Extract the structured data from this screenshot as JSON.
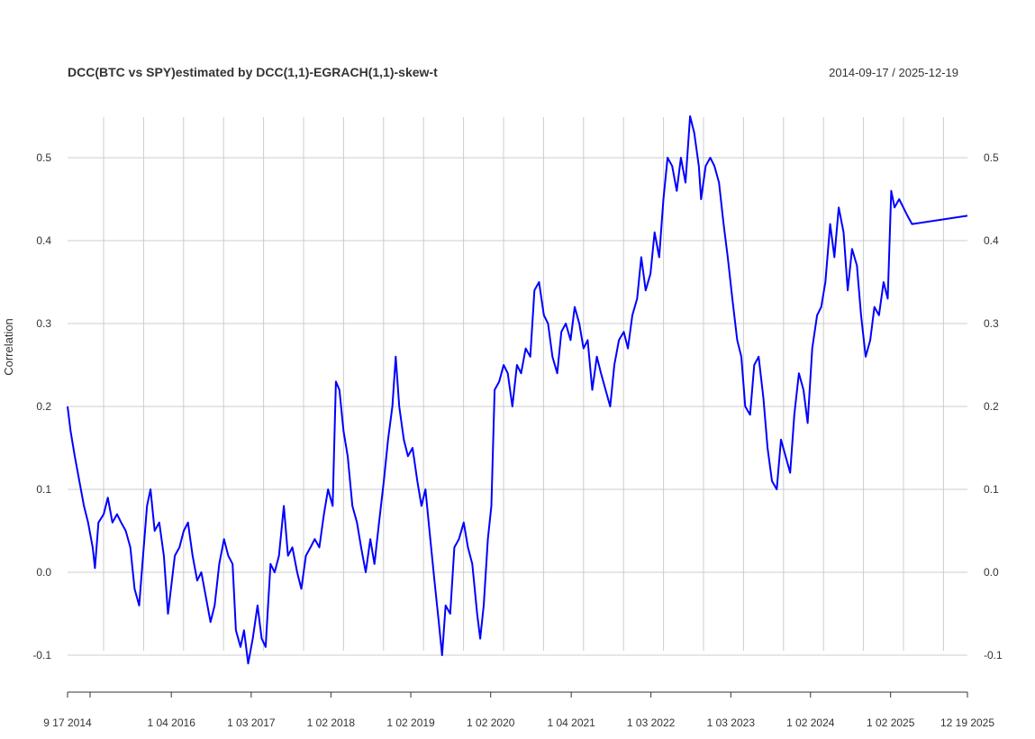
{
  "chart_data": {
    "type": "line",
    "title": "DCC(BTC vs SPY)estimated by DCC(1,1)-EGRACH(1,1)-skew-t",
    "date_range": "2014-09-17 / 2025-12-19",
    "ylabel": "Correlation",
    "ylim": [
      -0.15,
      0.55
    ],
    "grid": true,
    "y_ticks": [
      "-0.1",
      "0.0",
      "0.1",
      "0.2",
      "0.3",
      "0.4",
      "0.5"
    ],
    "x_tick_labels": [
      {
        "date": "2014-09-17",
        "label": "9 17 2014"
      },
      {
        "date": "2016-01-04",
        "label": "1 04 2016"
      },
      {
        "date": "2017-01-03",
        "label": "1 03 2017"
      },
      {
        "date": "2018-01-02",
        "label": "1 02 2018"
      },
      {
        "date": "2019-01-02",
        "label": "1 02 2019"
      },
      {
        "date": "2020-01-02",
        "label": "1 02 2020"
      },
      {
        "date": "2021-01-04",
        "label": "1 04 2021"
      },
      {
        "date": "2022-01-03",
        "label": "1 03 2022"
      },
      {
        "date": "2023-01-03",
        "label": "1 03 2023"
      },
      {
        "date": "2024-01-02",
        "label": "1 02 2024"
      },
      {
        "date": "2025-01-02",
        "label": "1 02 2025"
      },
      {
        "date": "2025-12-19",
        "label": "12 19 2025"
      }
    ],
    "series": [
      {
        "color": "#0000ff",
        "points": [
          [
            "2014-09-17",
            0.2
          ],
          [
            "2014-10-01",
            0.17
          ],
          [
            "2014-10-20",
            0.14
          ],
          [
            "2014-11-10",
            0.11
          ],
          [
            "2014-12-01",
            0.08
          ],
          [
            "2014-12-20",
            0.06
          ],
          [
            "2015-01-10",
            0.03
          ],
          [
            "2015-01-20",
            0.005
          ],
          [
            "2015-02-05",
            0.06
          ],
          [
            "2015-03-01",
            0.07
          ],
          [
            "2015-03-20",
            0.09
          ],
          [
            "2015-04-10",
            0.06
          ],
          [
            "2015-05-01",
            0.07
          ],
          [
            "2015-05-20",
            0.06
          ],
          [
            "2015-06-10",
            0.05
          ],
          [
            "2015-07-01",
            0.03
          ],
          [
            "2015-07-20",
            -0.02
          ],
          [
            "2015-08-10",
            -0.04
          ],
          [
            "2015-08-25",
            0.01
          ],
          [
            "2015-09-15",
            0.08
          ],
          [
            "2015-10-01",
            0.1
          ],
          [
            "2015-10-20",
            0.05
          ],
          [
            "2015-11-10",
            0.06
          ],
          [
            "2015-12-01",
            0.02
          ],
          [
            "2015-12-20",
            -0.05
          ],
          [
            "2016-01-20",
            0.02
          ],
          [
            "2016-02-10",
            0.03
          ],
          [
            "2016-03-01",
            0.05
          ],
          [
            "2016-03-20",
            0.06
          ],
          [
            "2016-04-10",
            0.02
          ],
          [
            "2016-05-01",
            -0.01
          ],
          [
            "2016-05-20",
            0.0
          ],
          [
            "2016-06-10",
            -0.03
          ],
          [
            "2016-07-01",
            -0.06
          ],
          [
            "2016-07-20",
            -0.04
          ],
          [
            "2016-08-10",
            0.01
          ],
          [
            "2016-09-01",
            0.04
          ],
          [
            "2016-09-20",
            0.02
          ],
          [
            "2016-10-10",
            0.01
          ],
          [
            "2016-10-25",
            -0.07
          ],
          [
            "2016-11-15",
            -0.09
          ],
          [
            "2016-12-01",
            -0.07
          ],
          [
            "2016-12-20",
            -0.11
          ],
          [
            "2017-01-10",
            -0.08
          ],
          [
            "2017-02-01",
            -0.04
          ],
          [
            "2017-02-20",
            -0.08
          ],
          [
            "2017-03-10",
            -0.09
          ],
          [
            "2017-04-01",
            0.01
          ],
          [
            "2017-04-20",
            0.0
          ],
          [
            "2017-05-10",
            0.02
          ],
          [
            "2017-06-01",
            0.08
          ],
          [
            "2017-06-20",
            0.02
          ],
          [
            "2017-07-10",
            0.03
          ],
          [
            "2017-08-01",
            0.0
          ],
          [
            "2017-08-20",
            -0.02
          ],
          [
            "2017-09-10",
            0.02
          ],
          [
            "2017-10-01",
            0.03
          ],
          [
            "2017-10-20",
            0.04
          ],
          [
            "2017-11-10",
            0.03
          ],
          [
            "2017-12-01",
            0.07
          ],
          [
            "2017-12-20",
            0.1
          ],
          [
            "2018-01-10",
            0.08
          ],
          [
            "2018-01-25",
            0.23
          ],
          [
            "2018-02-10",
            0.22
          ],
          [
            "2018-03-01",
            0.17
          ],
          [
            "2018-03-20",
            0.14
          ],
          [
            "2018-04-10",
            0.08
          ],
          [
            "2018-05-01",
            0.06
          ],
          [
            "2018-05-20",
            0.03
          ],
          [
            "2018-06-10",
            0.0
          ],
          [
            "2018-07-01",
            0.04
          ],
          [
            "2018-07-20",
            0.01
          ],
          [
            "2018-08-10",
            0.06
          ],
          [
            "2018-09-01",
            0.11
          ],
          [
            "2018-09-20",
            0.16
          ],
          [
            "2018-10-10",
            0.2
          ],
          [
            "2018-10-25",
            0.26
          ],
          [
            "2018-11-10",
            0.2
          ],
          [
            "2018-12-01",
            0.16
          ],
          [
            "2018-12-20",
            0.14
          ],
          [
            "2019-01-10",
            0.15
          ],
          [
            "2019-02-01",
            0.11
          ],
          [
            "2019-02-20",
            0.08
          ],
          [
            "2019-03-10",
            0.1
          ],
          [
            "2019-04-01",
            0.04
          ],
          [
            "2019-04-20",
            -0.01
          ],
          [
            "2019-05-10",
            -0.06
          ],
          [
            "2019-05-25",
            -0.1
          ],
          [
            "2019-06-10",
            -0.04
          ],
          [
            "2019-07-01",
            -0.05
          ],
          [
            "2019-07-20",
            0.03
          ],
          [
            "2019-08-10",
            0.04
          ],
          [
            "2019-09-01",
            0.06
          ],
          [
            "2019-09-20",
            0.03
          ],
          [
            "2019-10-10",
            0.01
          ],
          [
            "2019-11-01",
            -0.05
          ],
          [
            "2019-11-15",
            -0.08
          ],
          [
            "2019-12-01",
            -0.04
          ],
          [
            "2019-12-20",
            0.04
          ],
          [
            "2020-01-05",
            0.08
          ],
          [
            "2020-01-20",
            0.22
          ],
          [
            "2020-02-10",
            0.23
          ],
          [
            "2020-03-01",
            0.25
          ],
          [
            "2020-03-20",
            0.24
          ],
          [
            "2020-04-10",
            0.2
          ],
          [
            "2020-05-01",
            0.25
          ],
          [
            "2020-05-20",
            0.24
          ],
          [
            "2020-06-10",
            0.27
          ],
          [
            "2020-07-01",
            0.26
          ],
          [
            "2020-07-20",
            0.34
          ],
          [
            "2020-08-10",
            0.35
          ],
          [
            "2020-09-01",
            0.31
          ],
          [
            "2020-09-20",
            0.3
          ],
          [
            "2020-10-10",
            0.26
          ],
          [
            "2020-11-01",
            0.24
          ],
          [
            "2020-11-20",
            0.29
          ],
          [
            "2020-12-10",
            0.3
          ],
          [
            "2021-01-01",
            0.28
          ],
          [
            "2021-01-20",
            0.32
          ],
          [
            "2021-02-10",
            0.3
          ],
          [
            "2021-03-01",
            0.27
          ],
          [
            "2021-03-20",
            0.28
          ],
          [
            "2021-04-10",
            0.22
          ],
          [
            "2021-05-01",
            0.26
          ],
          [
            "2021-05-20",
            0.24
          ],
          [
            "2021-06-10",
            0.22
          ],
          [
            "2021-07-01",
            0.2
          ],
          [
            "2021-07-20",
            0.25
          ],
          [
            "2021-08-10",
            0.28
          ],
          [
            "2021-09-01",
            0.29
          ],
          [
            "2021-09-20",
            0.27
          ],
          [
            "2021-10-10",
            0.31
          ],
          [
            "2021-11-01",
            0.33
          ],
          [
            "2021-11-20",
            0.38
          ],
          [
            "2021-12-10",
            0.34
          ],
          [
            "2022-01-01",
            0.36
          ],
          [
            "2022-01-20",
            0.41
          ],
          [
            "2022-02-10",
            0.38
          ],
          [
            "2022-03-01",
            0.45
          ],
          [
            "2022-03-20",
            0.5
          ],
          [
            "2022-04-10",
            0.49
          ],
          [
            "2022-05-01",
            0.46
          ],
          [
            "2022-05-20",
            0.5
          ],
          [
            "2022-06-10",
            0.47
          ],
          [
            "2022-07-01",
            0.55
          ],
          [
            "2022-07-20",
            0.53
          ],
          [
            "2022-08-10",
            0.49
          ],
          [
            "2022-08-20",
            0.45
          ],
          [
            "2022-09-10",
            0.49
          ],
          [
            "2022-10-01",
            0.5
          ],
          [
            "2022-10-20",
            0.49
          ],
          [
            "2022-11-10",
            0.47
          ],
          [
            "2022-12-01",
            0.42
          ],
          [
            "2022-12-20",
            0.38
          ],
          [
            "2023-01-10",
            0.33
          ],
          [
            "2023-02-01",
            0.28
          ],
          [
            "2023-02-20",
            0.26
          ],
          [
            "2023-03-10",
            0.2
          ],
          [
            "2023-04-01",
            0.19
          ],
          [
            "2023-04-20",
            0.25
          ],
          [
            "2023-05-10",
            0.26
          ],
          [
            "2023-06-01",
            0.21
          ],
          [
            "2023-06-20",
            0.15
          ],
          [
            "2023-07-10",
            0.11
          ],
          [
            "2023-08-01",
            0.1
          ],
          [
            "2023-08-20",
            0.16
          ],
          [
            "2023-09-10",
            0.14
          ],
          [
            "2023-10-01",
            0.12
          ],
          [
            "2023-10-20",
            0.19
          ],
          [
            "2023-11-10",
            0.24
          ],
          [
            "2023-12-01",
            0.22
          ],
          [
            "2023-12-20",
            0.18
          ],
          [
            "2024-01-10",
            0.27
          ],
          [
            "2024-02-01",
            0.31
          ],
          [
            "2024-02-20",
            0.32
          ],
          [
            "2024-03-10",
            0.35
          ],
          [
            "2024-04-01",
            0.42
          ],
          [
            "2024-04-20",
            0.38
          ],
          [
            "2024-05-10",
            0.44
          ],
          [
            "2024-06-01",
            0.41
          ],
          [
            "2024-06-20",
            0.34
          ],
          [
            "2024-07-10",
            0.39
          ],
          [
            "2024-08-01",
            0.37
          ],
          [
            "2024-08-20",
            0.31
          ],
          [
            "2024-09-10",
            0.26
          ],
          [
            "2024-10-01",
            0.28
          ],
          [
            "2024-10-20",
            0.32
          ],
          [
            "2024-11-10",
            0.31
          ],
          [
            "2024-12-01",
            0.35
          ],
          [
            "2024-12-20",
            0.33
          ],
          [
            "2025-01-05",
            0.46
          ],
          [
            "2025-01-20",
            0.44
          ],
          [
            "2025-02-10",
            0.45
          ],
          [
            "2025-03-01",
            0.44
          ],
          [
            "2025-03-20",
            0.43
          ],
          [
            "2025-04-10",
            0.42
          ],
          [
            "2025-12-19",
            0.43
          ]
        ]
      }
    ]
  }
}
